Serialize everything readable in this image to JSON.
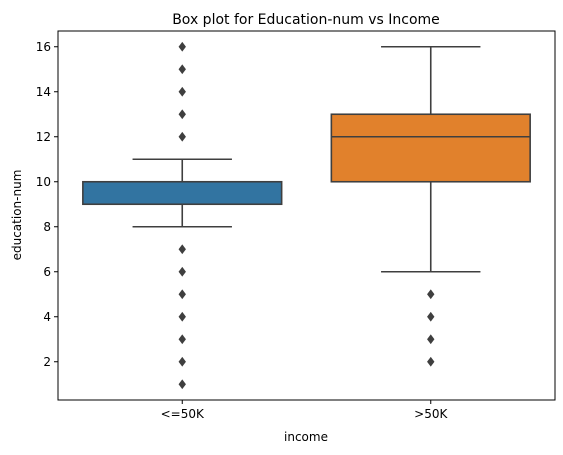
{
  "chart_data": {
    "type": "box",
    "title": "Box plot for Education-num vs Income",
    "xlabel": "income",
    "ylabel": "education-num",
    "ylim": [
      0.3,
      16.7
    ],
    "yticks": [
      2,
      4,
      6,
      8,
      10,
      12,
      14,
      16
    ],
    "grid": false,
    "categories": [
      "<=50K",
      ">50K"
    ],
    "boxes": [
      {
        "category": "<=50K",
        "color": "#3274a1",
        "whisker_low": 8,
        "q1": 9,
        "median": 9,
        "q3": 10,
        "whisker_high": 11,
        "outliers": [
          1,
          2,
          3,
          4,
          5,
          6,
          7,
          12,
          13,
          14,
          15,
          16
        ]
      },
      {
        "category": ">50K",
        "color": "#e1812c",
        "whisker_low": 6,
        "q1": 10,
        "median": 12,
        "q3": 13,
        "whisker_high": 16,
        "outliers": [
          2,
          3,
          4,
          5
        ]
      }
    ]
  }
}
